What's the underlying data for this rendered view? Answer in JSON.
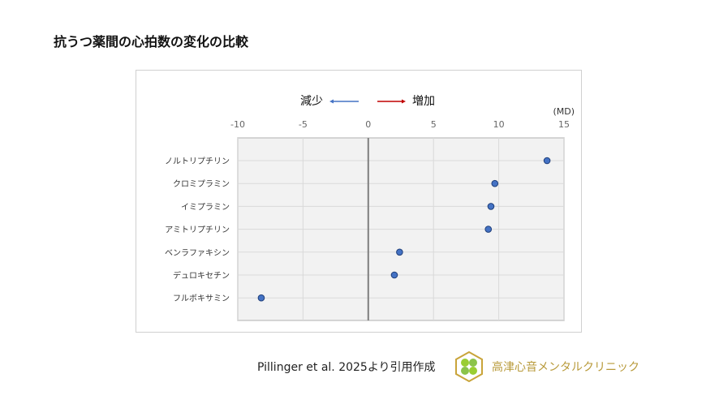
{
  "title": "抗うつ薬間の心拍数の変化の比較",
  "chart_data": {
    "type": "scatter",
    "title": "",
    "unit_label": "(MD)",
    "direction_labels": {
      "decrease": "減少",
      "increase": "増加"
    },
    "xlim": [
      -10,
      15
    ],
    "xticks": [
      -10,
      -5,
      0,
      5,
      10,
      15
    ],
    "grid": true,
    "categories": [
      "ノルトリプチリン",
      "クロミプラミン",
      "イミプラミン",
      "アミトリプチリン",
      "ベンラファキシン",
      "デュロキセチン",
      "フルボキサミン"
    ],
    "values": [
      13.7,
      9.7,
      9.4,
      9.2,
      2.4,
      2.0,
      -8.2
    ],
    "colors": {
      "point": "#4472c4",
      "decrease_arrow": "#4472c4",
      "increase_arrow": "#c00000"
    }
  },
  "footer": {
    "citation": "Pillinger et al. 2025より引用作成",
    "clinic_name": "高津心音メンタルクリニック"
  }
}
